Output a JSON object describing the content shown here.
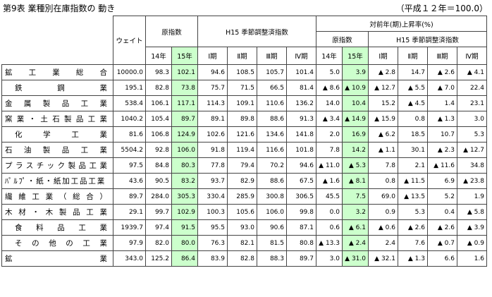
{
  "title": "第9表 業種別在庫指数の 動き",
  "note": "（平成１２年＝100.0）",
  "headers": {
    "weight": "ウェイト",
    "gen_index": "原指数",
    "h15_sa_index": "H15 季節調整済指数",
    "yoy": "対前年(期)上昇率(%)",
    "yoy_gen": "原指数",
    "yoy_h15": "H15 季節調整済指数",
    "y14": "14年",
    "y15": "15年",
    "q1": "Ⅰ期",
    "q2": "Ⅱ期",
    "q3": "Ⅲ期",
    "q4": "Ⅳ期",
    "yy14": "14年",
    "yy15": "15年",
    "qq1": "Ⅰ期",
    "qq2": "Ⅱ期",
    "qq3": "Ⅲ期",
    "qq4": "Ⅳ期"
  },
  "rows": [
    {
      "name": "鉱工業総合",
      "indent": false,
      "w": "10000.0",
      "g14": "98.3",
      "g15": "102.1",
      "q1": "94.6",
      "q2": "108.5",
      "q3": "105.7",
      "q4": "101.4",
      "r14": "5.0",
      "r15": "3.9",
      "r1": "▲ 2.8",
      "r2": "14.7",
      "r3": "▲ 2.6",
      "r4": "▲ 4.1"
    },
    {
      "name": "鉄鋼業",
      "indent": true,
      "w": "195.1",
      "g14": "82.8",
      "g15": "73.8",
      "q1": "75.7",
      "q2": "71.5",
      "q3": "66.5",
      "q4": "81.4",
      "r14": "▲ 8.6",
      "r15": "▲ 10.9",
      "r1": "▲ 12.7",
      "r2": "▲ 5.5",
      "r3": "▲ 7.0",
      "r4": "22.4"
    },
    {
      "name": "金属製品工業",
      "indent": false,
      "w": "538.4",
      "g14": "106.1",
      "g15": "117.1",
      "q1": "114.3",
      "q2": "109.1",
      "q3": "110.6",
      "q4": "136.2",
      "r14": "14.0",
      "r15": "10.4",
      "r1": "15.2",
      "r2": "▲ 4.5",
      "r3": "1.4",
      "r4": "23.1"
    },
    {
      "name": "窯業・土石製品工業",
      "indent": false,
      "w": "1040.2",
      "g14": "105.4",
      "g15": "89.7",
      "q1": "89.1",
      "q2": "89.8",
      "q3": "88.6",
      "q4": "91.3",
      "r14": "▲ 3.4",
      "r15": "▲ 14.9",
      "r1": "▲ 15.9",
      "r2": "0.8",
      "r3": "▲ 1.3",
      "r4": "3.0"
    },
    {
      "name": "化学工業",
      "indent": true,
      "w": "81.6",
      "g14": "106.8",
      "g15": "124.9",
      "q1": "102.6",
      "q2": "121.6",
      "q3": "134.6",
      "q4": "141.8",
      "r14": "2.0",
      "r15": "16.9",
      "r1": "▲ 6.2",
      "r2": "18.5",
      "r3": "10.7",
      "r4": "5.3"
    },
    {
      "name": "石油製品工業",
      "indent": false,
      "w": "5504.2",
      "g14": "92.8",
      "g15": "106.0",
      "q1": "91.8",
      "q2": "119.4",
      "q3": "116.6",
      "q4": "101.8",
      "r14": "7.8",
      "r15": "14.2",
      "r1": "▲ 1.1",
      "r2": "30.1",
      "r3": "▲ 2.3",
      "r4": "▲ 12.7"
    },
    {
      "name": "プラスチック製品工業",
      "indent": false,
      "w": "97.5",
      "g14": "84.8",
      "g15": "80.3",
      "q1": "77.8",
      "q2": "79.4",
      "q3": "70.2",
      "q4": "94.6",
      "r14": "▲ 11.0",
      "r15": "▲ 5.3",
      "r1": "7.8",
      "r2": "2.1",
      "r3": "▲ 11.6",
      "r4": "34.8"
    },
    {
      "name": "ﾊﾟﾙﾌﾟ・紙・紙加工品工業",
      "indent": false,
      "w": "43.6",
      "g14": "90.5",
      "g15": "83.2",
      "q1": "93.7",
      "q2": "82.9",
      "q3": "88.6",
      "q4": "67.5",
      "r14": "▲ 1.6",
      "r15": "▲ 8.1",
      "r1": "0.8",
      "r2": "▲ 11.5",
      "r3": "6.9",
      "r4": "▲ 23.8"
    },
    {
      "name": "繊維工業（総合）",
      "indent": false,
      "w": "89.7",
      "g14": "284.0",
      "g15": "305.3",
      "q1": "330.4",
      "q2": "285.9",
      "q3": "300.8",
      "q4": "306.5",
      "r14": "45.5",
      "r15": "7.5",
      "r1": "69.0",
      "r2": "▲ 13.5",
      "r3": "5.2",
      "r4": "1.9"
    },
    {
      "name": "木材・木製品工業",
      "indent": false,
      "w": "29.1",
      "g14": "99.7",
      "g15": "102.9",
      "q1": "100.3",
      "q2": "105.6",
      "q3": "106.0",
      "q4": "99.8",
      "r14": "0.0",
      "r15": "3.2",
      "r1": "0.9",
      "r2": "5.3",
      "r3": "0.4",
      "r4": "▲ 5.8"
    },
    {
      "name": "食料品工業",
      "indent": true,
      "w": "1939.7",
      "g14": "97.4",
      "g15": "91.5",
      "q1": "95.5",
      "q2": "93.0",
      "q3": "90.6",
      "q4": "87.1",
      "r14": "0.6",
      "r15": "▲ 6.1",
      "r1": "▲ 0.6",
      "r2": "▲ 2.6",
      "r3": "▲ 2.6",
      "r4": "▲ 3.9"
    },
    {
      "name": "その他の工業",
      "indent": true,
      "w": "97.9",
      "g14": "82.0",
      "g15": "80.0",
      "q1": "76.3",
      "q2": "82.1",
      "q3": "81.5",
      "q4": "80.8",
      "r14": "▲ 13.3",
      "r15": "▲ 2.4",
      "r1": "2.4",
      "r2": "7.6",
      "r3": "▲ 0.7",
      "r4": "▲ 0.9"
    },
    {
      "name": "鉱業",
      "indent": false,
      "w": "343.0",
      "g14": "125.2",
      "g15": "86.4",
      "q1": "83.9",
      "q2": "82.8",
      "q3": "88.3",
      "q4": "89.7",
      "r14": "3.0",
      "r15": "▲ 31.0",
      "r1": "▲ 32.1",
      "r2": "▲ 1.3",
      "r3": "6.6",
      "r4": "1.6"
    }
  ]
}
